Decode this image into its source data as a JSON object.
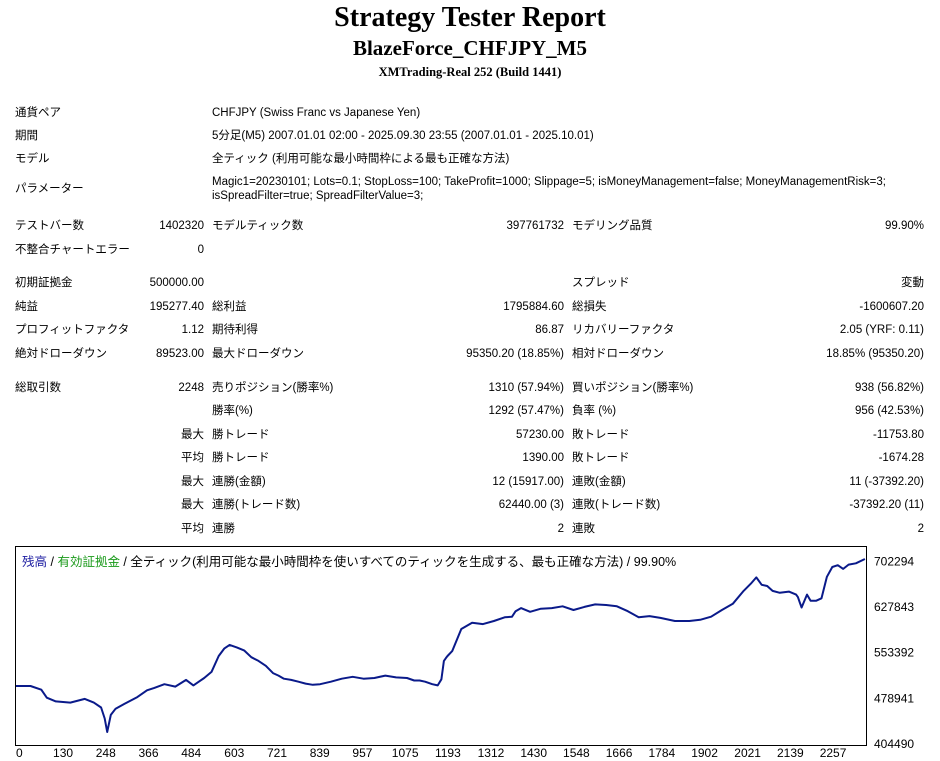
{
  "header": {
    "title": "Strategy Tester Report",
    "subtitle": "BlazeForce_CHFJPY_M5",
    "server": "XMTrading-Real 252 (Build 1441)"
  },
  "info": {
    "pair_label": "通貨ペア",
    "pair_value": "CHFJPY (Swiss Franc vs Japanese Yen)",
    "period_label": "期間",
    "period_value": "5分足(M5) 2007.01.01 02:00 - 2025.09.30 23:55 (2007.01.01 - 2025.10.01)",
    "model_label": "モデル",
    "model_value": "全ティック (利用可能な最小時間枠による最も正確な方法)",
    "params_label": "パラメーター",
    "params_line1": "Magic1=20230101; Lots=0.1; StopLoss=100; TakeProfit=1000; Slippage=5; isMoneyManagement=false; MoneyManagementRisk=3;",
    "params_line2": "isSpreadFilter=true; SpreadFilterValue=3;"
  },
  "stats": {
    "bars_label": "テストバー数",
    "bars_value": "1402320",
    "ticks_label": "モデルティック数",
    "ticks_value": "397761732",
    "quality_label": "モデリング品質",
    "quality_value": "99.90%",
    "mismatch_label": "不整合チャートエラー",
    "mismatch_value": "0",
    "deposit_label": "初期証拠金",
    "deposit_value": "500000.00",
    "spread_label": "スプレッド",
    "spread_value": "変動",
    "net_label": "純益",
    "net_value": "195277.40",
    "gross_profit_label": "総利益",
    "gross_profit_value": "1795884.60",
    "gross_loss_label": "総損失",
    "gross_loss_value": "-1600607.20",
    "pf_label": "プロフィットファクタ",
    "pf_value": "1.12",
    "payoff_label": "期待利得",
    "payoff_value": "86.87",
    "recovery_label": "リカバリーファクタ",
    "recovery_value": "2.05 (YRF: 0.11)",
    "abs_dd_label": "絶対ドローダウン",
    "abs_dd_value": "89523.00",
    "max_dd_label": "最大ドローダウン",
    "max_dd_value": "95350.20 (18.85%)",
    "rel_dd_label": "相対ドローダウン",
    "rel_dd_value": "18.85% (95350.20)",
    "trades_label": "総取引数",
    "trades_value": "2248",
    "short_label": "売りポジション(勝率%)",
    "short_value": "1310 (57.94%)",
    "long_label": "買いポジション(勝率%)",
    "long_value": "938 (56.82%)",
    "win_rate_label": "勝率(%)",
    "win_rate_value": "1292 (57.47%)",
    "loss_rate_label": "負率 (%)",
    "loss_rate_value": "956 (42.53%)",
    "max_label": "最大",
    "avg_label": "平均",
    "largest_win_label": "勝トレード",
    "largest_win_value": "57230.00",
    "largest_loss_label": "敗トレード",
    "largest_loss_value": "-11753.80",
    "avg_win_label": "勝トレード",
    "avg_win_value": "1390.00",
    "avg_loss_label": "敗トレード",
    "avg_loss_value": "-1674.28",
    "max_consec_win_label": "連勝(金額)",
    "max_consec_win_value": "12 (15917.00)",
    "max_consec_loss_label": "連敗(金額)",
    "max_consec_loss_value": "11 (-37392.20)",
    "max_consec_profit_label": "連勝(トレード数)",
    "max_consec_profit_value": "62440.00 (3)",
    "max_consec_lossamt_label": "連敗(トレード数)",
    "max_consec_lossamt_value": "-37392.20 (11)",
    "avg_consec_win_label": "連勝",
    "avg_consec_win_value": "2",
    "avg_consec_loss_label": "連敗",
    "avg_consec_loss_value": "2"
  },
  "legend": {
    "balance": "残高",
    "sep1": " / ",
    "equity": "有効証拠金",
    "sep2": " / ",
    "rest": "全ティック(利用可能な最小時間枠を使いすべてのティックを生成する、最も正確な方法) / 99.90%"
  },
  "colors": {
    "balance": "#0a1a8a",
    "equity": "#1a9a1a",
    "legend_balance": "#1a1aa0"
  },
  "chart_data": {
    "type": "line",
    "x_ticks": [
      "0",
      "130",
      "248",
      "366",
      "484",
      "603",
      "721",
      "839",
      "957",
      "1075",
      "1193",
      "1312",
      "1430",
      "1548",
      "1666",
      "1784",
      "1902",
      "2021",
      "2139",
      "2257"
    ],
    "y_ticks": [
      "702294",
      "627843",
      "553392",
      "478941",
      "404490"
    ],
    "xlim": [
      0,
      2348
    ],
    "ylim": [
      404490,
      724000
    ],
    "series": [
      {
        "name": "残高",
        "x": [
          0,
          40,
          70,
          85,
          110,
          150,
          190,
          215,
          235,
          245,
          252,
          262,
          275,
          300,
          335,
          362,
          382,
          410,
          440,
          470,
          490,
          505,
          520,
          540,
          560,
          575,
          590,
          610,
          630,
          650,
          670,
          690,
          710,
          725,
          740,
          760,
          780,
          800,
          820,
          840,
          870,
          900,
          930,
          960,
          990,
          1020,
          1050,
          1080,
          1100,
          1115,
          1130,
          1150,
          1165,
          1175,
          1182,
          1188,
          1192,
          1205,
          1230,
          1260,
          1290,
          1320,
          1350,
          1370,
          1380,
          1395,
          1420,
          1450,
          1480,
          1510,
          1540,
          1570,
          1600,
          1630,
          1660,
          1690,
          1720,
          1750,
          1780,
          1820,
          1860,
          1890,
          1920,
          1950,
          1980,
          2010,
          2030,
          2045,
          2060,
          2075,
          2090,
          2110,
          2135,
          2155,
          2160,
          2165,
          2170,
          2185,
          2195,
          2210,
          2225,
          2240,
          2255,
          2270,
          2285,
          2300,
          2320,
          2345
        ],
        "y": [
          499000,
          499000,
          493000,
          480000,
          474000,
          472000,
          478000,
          472000,
          464000,
          446000,
          424000,
          452000,
          462000,
          470000,
          481000,
          492000,
          496000,
          502000,
          498000,
          509000,
          500000,
          506000,
          512000,
          522000,
          548000,
          560000,
          566000,
          562000,
          557000,
          546000,
          540000,
          532000,
          520000,
          516000,
          511000,
          509000,
          506000,
          503000,
          501000,
          502000,
          506000,
          511000,
          514000,
          511000,
          512000,
          516000,
          513000,
          512000,
          508000,
          508000,
          506000,
          502000,
          500000,
          510000,
          540000,
          545000,
          548000,
          556000,
          592000,
          602000,
          600000,
          605000,
          611000,
          612000,
          621000,
          626000,
          620000,
          625000,
          626000,
          629000,
          623000,
          628000,
          632000,
          631000,
          629000,
          621000,
          611000,
          613000,
          610000,
          605000,
          605000,
          607000,
          612000,
          623000,
          633000,
          654000,
          666000,
          676000,
          664000,
          662000,
          654000,
          651000,
          653000,
          648000,
          644000,
          635000,
          627000,
          648000,
          638000,
          638000,
          642000,
          677000,
          693000,
          696000,
          690000,
          697000,
          699000,
          706000
        ]
      }
    ]
  }
}
